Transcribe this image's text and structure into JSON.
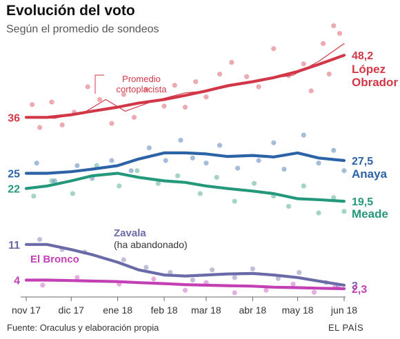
{
  "header": {
    "title": "Evolución del voto",
    "subtitle": "Según el promedio de sondeos"
  },
  "footer": {
    "source": "Fuente: Oraculus y elaboración propia",
    "credit": "EL PAÍS"
  },
  "colors": {
    "lopez": "#d23747",
    "anaya": "#2c62a6",
    "meade": "#24987a",
    "zavala": "#6b6aa8",
    "bronco": "#c33fb4",
    "axis": "#666666"
  },
  "chart_data": {
    "type": "line",
    "title": "Evolución del voto",
    "subtitle": "Según el promedio de sondeos",
    "xlabel": "",
    "ylabel": "",
    "x_ticks": [
      "nov 17",
      "dic 17",
      "ene 18",
      "feb 18",
      "mar 18",
      "abr 18",
      "may 18",
      "jun 18"
    ],
    "x_range": [
      "2017-11-01",
      "2018-06-01"
    ],
    "ylim": [
      0,
      55
    ],
    "grid": false,
    "legend": "direct labels at line ends",
    "annotations": [
      {
        "text": "Promedio\ncortoplacista",
        "target": "López Obrador"
      }
    ],
    "series": [
      {
        "name": "López Obrador",
        "color": "#d23747",
        "start_label": "36",
        "end_label": "48,2",
        "name_lines": [
          "López",
          "Obrador"
        ],
        "points": [
          [
            "2017-11-01",
            36.0
          ],
          [
            "2017-11-15",
            36.0
          ],
          [
            "2017-12-01",
            36.5
          ],
          [
            "2017-12-15",
            37.2
          ],
          [
            "2018-01-01",
            38.0
          ],
          [
            "2018-01-15",
            38.8
          ],
          [
            "2018-02-01",
            39.5
          ],
          [
            "2018-02-15",
            40.3
          ],
          [
            "2018-03-01",
            41.2
          ],
          [
            "2018-03-15",
            42.2
          ],
          [
            "2018-04-01",
            43.0
          ],
          [
            "2018-04-15",
            43.8
          ],
          [
            "2018-05-01",
            45.0
          ],
          [
            "2018-05-15",
            46.4
          ],
          [
            "2018-06-01",
            48.2
          ]
        ],
        "short_term": [
          [
            "2017-11-01",
            36.0
          ],
          [
            "2017-11-20",
            35.8
          ],
          [
            "2017-12-10",
            37.0
          ],
          [
            "2017-12-24",
            39.5
          ],
          [
            "2018-01-06",
            37.2
          ],
          [
            "2018-01-25",
            39.2
          ],
          [
            "2018-02-15",
            40.8
          ],
          [
            "2018-03-05",
            41.3
          ],
          [
            "2018-03-25",
            42.6
          ],
          [
            "2018-04-12",
            43.6
          ],
          [
            "2018-04-28",
            44.3
          ],
          [
            "2018-05-15",
            47.0
          ],
          [
            "2018-06-01",
            50.5
          ]
        ],
        "polls": [
          [
            "2017-11-05",
            38.5
          ],
          [
            "2017-11-10",
            34.0
          ],
          [
            "2017-11-18",
            39.0
          ],
          [
            "2017-11-25",
            34.5
          ],
          [
            "2017-12-03",
            37.0
          ],
          [
            "2017-12-12",
            42.0
          ],
          [
            "2017-12-20",
            39.5
          ],
          [
            "2017-12-28",
            34.8
          ],
          [
            "2018-01-05",
            40.5
          ],
          [
            "2018-01-12",
            36.0
          ],
          [
            "2018-01-20",
            41.5
          ],
          [
            "2018-02-01",
            38.2
          ],
          [
            "2018-02-08",
            42.3
          ],
          [
            "2018-02-15",
            38.0
          ],
          [
            "2018-02-22",
            43.0
          ],
          [
            "2018-03-01",
            40.0
          ],
          [
            "2018-03-10",
            44.5
          ],
          [
            "2018-03-18",
            46.8
          ],
          [
            "2018-03-28",
            44.0
          ],
          [
            "2018-04-05",
            42.0
          ],
          [
            "2018-04-15",
            49.5
          ],
          [
            "2018-04-25",
            44.2
          ],
          [
            "2018-05-05",
            46.5
          ],
          [
            "2018-05-10",
            41.2
          ],
          [
            "2018-05-18",
            50.5
          ],
          [
            "2018-05-25",
            54.0
          ],
          [
            "2018-05-29",
            52.5
          ],
          [
            "2018-05-22",
            44.5
          ]
        ]
      },
      {
        "name": "Anaya",
        "color": "#2c62a6",
        "start_label": "25",
        "end_label": "27,5",
        "name_lines": [
          "Anaya"
        ],
        "points": [
          [
            "2017-11-01",
            25.0
          ],
          [
            "2017-11-15",
            25.0
          ],
          [
            "2017-12-01",
            25.3
          ],
          [
            "2017-12-15",
            25.8
          ],
          [
            "2018-01-01",
            26.5
          ],
          [
            "2018-01-15",
            27.8
          ],
          [
            "2018-02-01",
            29.0
          ],
          [
            "2018-02-15",
            29.0
          ],
          [
            "2018-03-01",
            28.8
          ],
          [
            "2018-03-15",
            28.3
          ],
          [
            "2018-04-01",
            28.5
          ],
          [
            "2018-04-15",
            28.2
          ],
          [
            "2018-05-01",
            29.0
          ],
          [
            "2018-05-15",
            28.0
          ],
          [
            "2018-06-01",
            27.5
          ]
        ],
        "polls": [
          [
            "2017-11-08",
            27.0
          ],
          [
            "2017-11-20",
            23.5
          ],
          [
            "2017-12-05",
            26.5
          ],
          [
            "2017-12-15",
            24.0
          ],
          [
            "2017-12-28",
            27.5
          ],
          [
            "2018-01-10",
            25.5
          ],
          [
            "2018-01-22",
            30.0
          ],
          [
            "2018-02-02",
            27.5
          ],
          [
            "2018-02-12",
            31.5
          ],
          [
            "2018-02-20",
            28.0
          ],
          [
            "2018-03-01",
            27.0
          ],
          [
            "2018-03-10",
            30.5
          ],
          [
            "2018-03-22",
            26.0
          ],
          [
            "2018-04-05",
            27.5
          ],
          [
            "2018-04-15",
            31.0
          ],
          [
            "2018-04-22",
            25.8
          ],
          [
            "2018-05-05",
            32.5
          ],
          [
            "2018-05-15",
            27.0
          ],
          [
            "2018-05-25",
            29.5
          ],
          [
            "2018-06-01",
            25.5
          ]
        ]
      },
      {
        "name": "Meade",
        "color": "#24987a",
        "start_label": "22",
        "end_label": "19,5",
        "name_lines": [
          "Meade"
        ],
        "points": [
          [
            "2017-11-01",
            22.0
          ],
          [
            "2017-11-15",
            22.5
          ],
          [
            "2017-12-01",
            23.5
          ],
          [
            "2017-12-15",
            24.5
          ],
          [
            "2018-01-01",
            25.0
          ],
          [
            "2018-01-15",
            24.2
          ],
          [
            "2018-02-01",
            23.5
          ],
          [
            "2018-02-15",
            23.2
          ],
          [
            "2018-03-01",
            22.5
          ],
          [
            "2018-03-15",
            22.0
          ],
          [
            "2018-04-01",
            21.5
          ],
          [
            "2018-04-15",
            21.0
          ],
          [
            "2018-05-01",
            20.0
          ],
          [
            "2018-05-15",
            19.8
          ],
          [
            "2018-06-01",
            19.5
          ]
        ],
        "polls": [
          [
            "2017-11-06",
            20.5
          ],
          [
            "2017-11-18",
            23.5
          ],
          [
            "2017-12-02",
            21.0
          ],
          [
            "2017-12-18",
            26.5
          ],
          [
            "2018-01-02",
            22.5
          ],
          [
            "2018-01-14",
            25.5
          ],
          [
            "2018-01-28",
            23.0
          ],
          [
            "2018-02-10",
            24.5
          ],
          [
            "2018-02-25",
            21.0
          ],
          [
            "2018-03-08",
            24.2
          ],
          [
            "2018-03-20",
            19.5
          ],
          [
            "2018-04-02",
            23.0
          ],
          [
            "2018-04-15",
            20.5
          ],
          [
            "2018-04-25",
            18.5
          ],
          [
            "2018-05-05",
            22.5
          ],
          [
            "2018-05-15",
            17.2
          ],
          [
            "2018-05-25",
            20.2
          ],
          [
            "2018-06-01",
            17.5
          ]
        ]
      },
      {
        "name": "Zavala",
        "color": "#6b6aa8",
        "start_label": "11",
        "end_label": "3",
        "name_lines": [
          "Zavala"
        ],
        "note": "(ha abandonado)",
        "points": [
          [
            "2017-11-01",
            11.0
          ],
          [
            "2017-11-15",
            11.0
          ],
          [
            "2017-12-01",
            10.0
          ],
          [
            "2017-12-15",
            9.0
          ],
          [
            "2018-01-01",
            7.5
          ],
          [
            "2018-01-15",
            6.0
          ],
          [
            "2018-02-01",
            5.0
          ],
          [
            "2018-02-15",
            4.8
          ],
          [
            "2018-03-01",
            5.0
          ],
          [
            "2018-03-15",
            5.2
          ],
          [
            "2018-04-01",
            5.3
          ],
          [
            "2018-04-15",
            5.0
          ],
          [
            "2018-05-01",
            4.5
          ],
          [
            "2018-05-15",
            3.8
          ],
          [
            "2018-06-01",
            3.0
          ]
        ],
        "polls": [
          [
            "2017-11-10",
            12.0
          ],
          [
            "2017-11-25",
            10.0
          ],
          [
            "2017-12-10",
            9.5
          ],
          [
            "2018-01-05",
            8.0
          ],
          [
            "2018-01-20",
            6.5
          ],
          [
            "2018-02-05",
            5.5
          ],
          [
            "2018-02-20",
            4.0
          ],
          [
            "2018-03-05",
            6.0
          ],
          [
            "2018-03-20",
            4.5
          ],
          [
            "2018-04-01",
            6.2
          ],
          [
            "2018-04-18",
            4.3
          ],
          [
            "2018-05-02",
            5.5
          ],
          [
            "2018-05-20",
            3.5
          ],
          [
            "2018-05-28",
            2.5
          ]
        ]
      },
      {
        "name": "El Bronco",
        "color": "#c33fb4",
        "start_label": "4",
        "end_label": "2,3",
        "name_lines": [
          "El Bronco"
        ],
        "points": [
          [
            "2017-11-01",
            4.0
          ],
          [
            "2017-11-15",
            4.0
          ],
          [
            "2017-12-01",
            3.9
          ],
          [
            "2017-12-15",
            3.8
          ],
          [
            "2018-01-01",
            3.7
          ],
          [
            "2018-01-15",
            3.5
          ],
          [
            "2018-02-01",
            3.3
          ],
          [
            "2018-02-15",
            3.1
          ],
          [
            "2018-03-01",
            3.0
          ],
          [
            "2018-03-15",
            2.9
          ],
          [
            "2018-04-01",
            2.8
          ],
          [
            "2018-04-15",
            2.6
          ],
          [
            "2018-05-01",
            2.5
          ],
          [
            "2018-05-15",
            2.4
          ],
          [
            "2018-06-01",
            2.3
          ]
        ],
        "polls": [
          [
            "2017-11-12",
            3.0
          ],
          [
            "2017-12-05",
            4.5
          ],
          [
            "2018-01-02",
            3.2
          ],
          [
            "2018-01-25",
            4.2
          ],
          [
            "2018-02-15",
            2.0
          ],
          [
            "2018-03-01",
            3.5
          ],
          [
            "2018-03-20",
            1.5
          ],
          [
            "2018-04-10",
            2.0
          ],
          [
            "2018-04-28",
            3.2
          ],
          [
            "2018-05-12",
            1.6
          ],
          [
            "2018-05-26",
            2.8
          ]
        ]
      }
    ]
  }
}
